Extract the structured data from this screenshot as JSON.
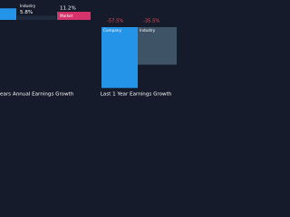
{
  "chart_data": [
    {
      "type": "bar",
      "title": "ears Annual Earnings Growth",
      "categories": [
        null,
        "Industry",
        "Market"
      ],
      "values": [
        16,
        5.8,
        11.2
      ],
      "value_labels": [
        null,
        "5.8%",
        "11.2%"
      ],
      "colors": [
        "#2394e8",
        "#1e2b3c",
        "#d6336c"
      ]
    },
    {
      "type": "bar",
      "title": "Last 1 Year Earnings Growth",
      "categories": [
        "Company",
        "Industry"
      ],
      "values": [
        -57.5,
        -35.5
      ],
      "value_labels": [
        "-57.5%",
        "-35.5%"
      ],
      "colors": [
        "#2394e8",
        "#3e5466"
      ],
      "label_color": "#e8505b"
    }
  ]
}
